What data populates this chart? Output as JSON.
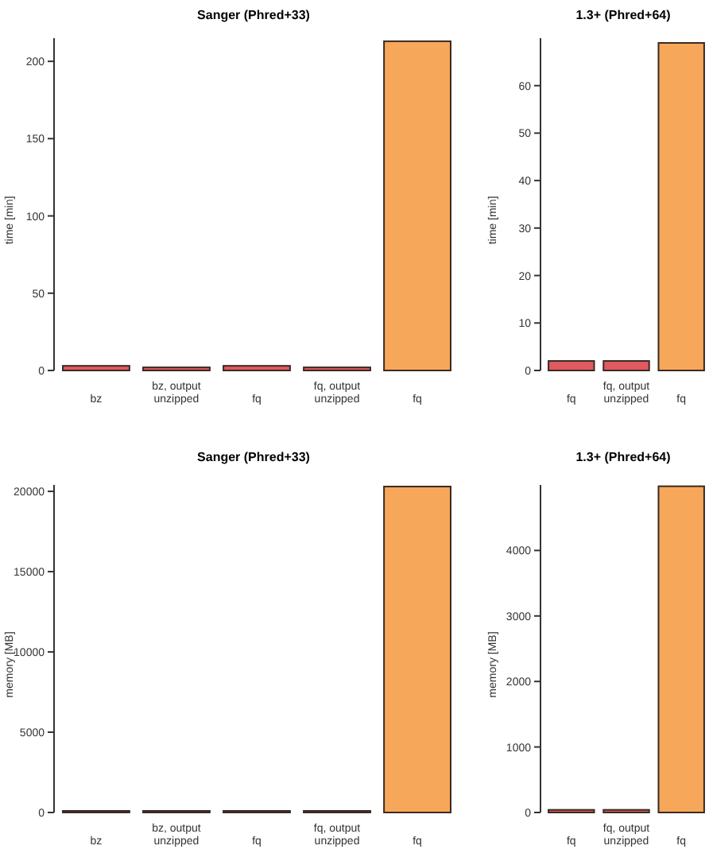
{
  "chart_data": [
    {
      "type": "bar",
      "title": "Sanger (Phred+33)",
      "ylabel": "time [min]",
      "categories": [
        "bz",
        "bz, output unzipped",
        "fq",
        "fq, output unzipped",
        "fq"
      ],
      "values": [
        3,
        2,
        3,
        2,
        213
      ],
      "colors": [
        "#e05a60",
        "#e05a60",
        "#e05a60",
        "#e05a60",
        "#f7a75a"
      ],
      "ylim": [
        0,
        215
      ],
      "yticks": [
        0,
        50,
        100,
        150,
        200
      ],
      "grid": false
    },
    {
      "type": "bar",
      "title": "1.3+ (Phred+64)",
      "ylabel": "time [min]",
      "categories": [
        "fq",
        "fq, output unzipped",
        "fq"
      ],
      "values": [
        2,
        2,
        69
      ],
      "colors": [
        "#e05a60",
        "#e05a60",
        "#f7a75a"
      ],
      "ylim": [
        0,
        70
      ],
      "yticks": [
        0,
        10,
        20,
        30,
        40,
        50,
        60
      ],
      "grid": false
    },
    {
      "type": "bar",
      "title": "Sanger (Phred+33)",
      "ylabel": "memory [MB]",
      "categories": [
        "bz",
        "bz, output unzipped",
        "fq",
        "fq, output unzipped",
        "fq"
      ],
      "values": [
        100,
        100,
        100,
        100,
        20300
      ],
      "colors": [
        "#e05a60",
        "#e05a60",
        "#e05a60",
        "#e05a60",
        "#f7a75a"
      ],
      "ylim": [
        0,
        20400
      ],
      "yticks": [
        0,
        5000,
        10000,
        15000,
        20000
      ],
      "grid": false
    },
    {
      "type": "bar",
      "title": "1.3+ (Phred+64)",
      "ylabel": "memory [MB]",
      "categories": [
        "fq",
        "fq, output unzipped",
        "fq"
      ],
      "values": [
        40,
        40,
        4980
      ],
      "colors": [
        "#e05a60",
        "#e05a60",
        "#f7a75a"
      ],
      "ylim": [
        0,
        5000
      ],
      "yticks": [
        0,
        1000,
        2000,
        3000,
        4000
      ],
      "grid": false
    }
  ]
}
